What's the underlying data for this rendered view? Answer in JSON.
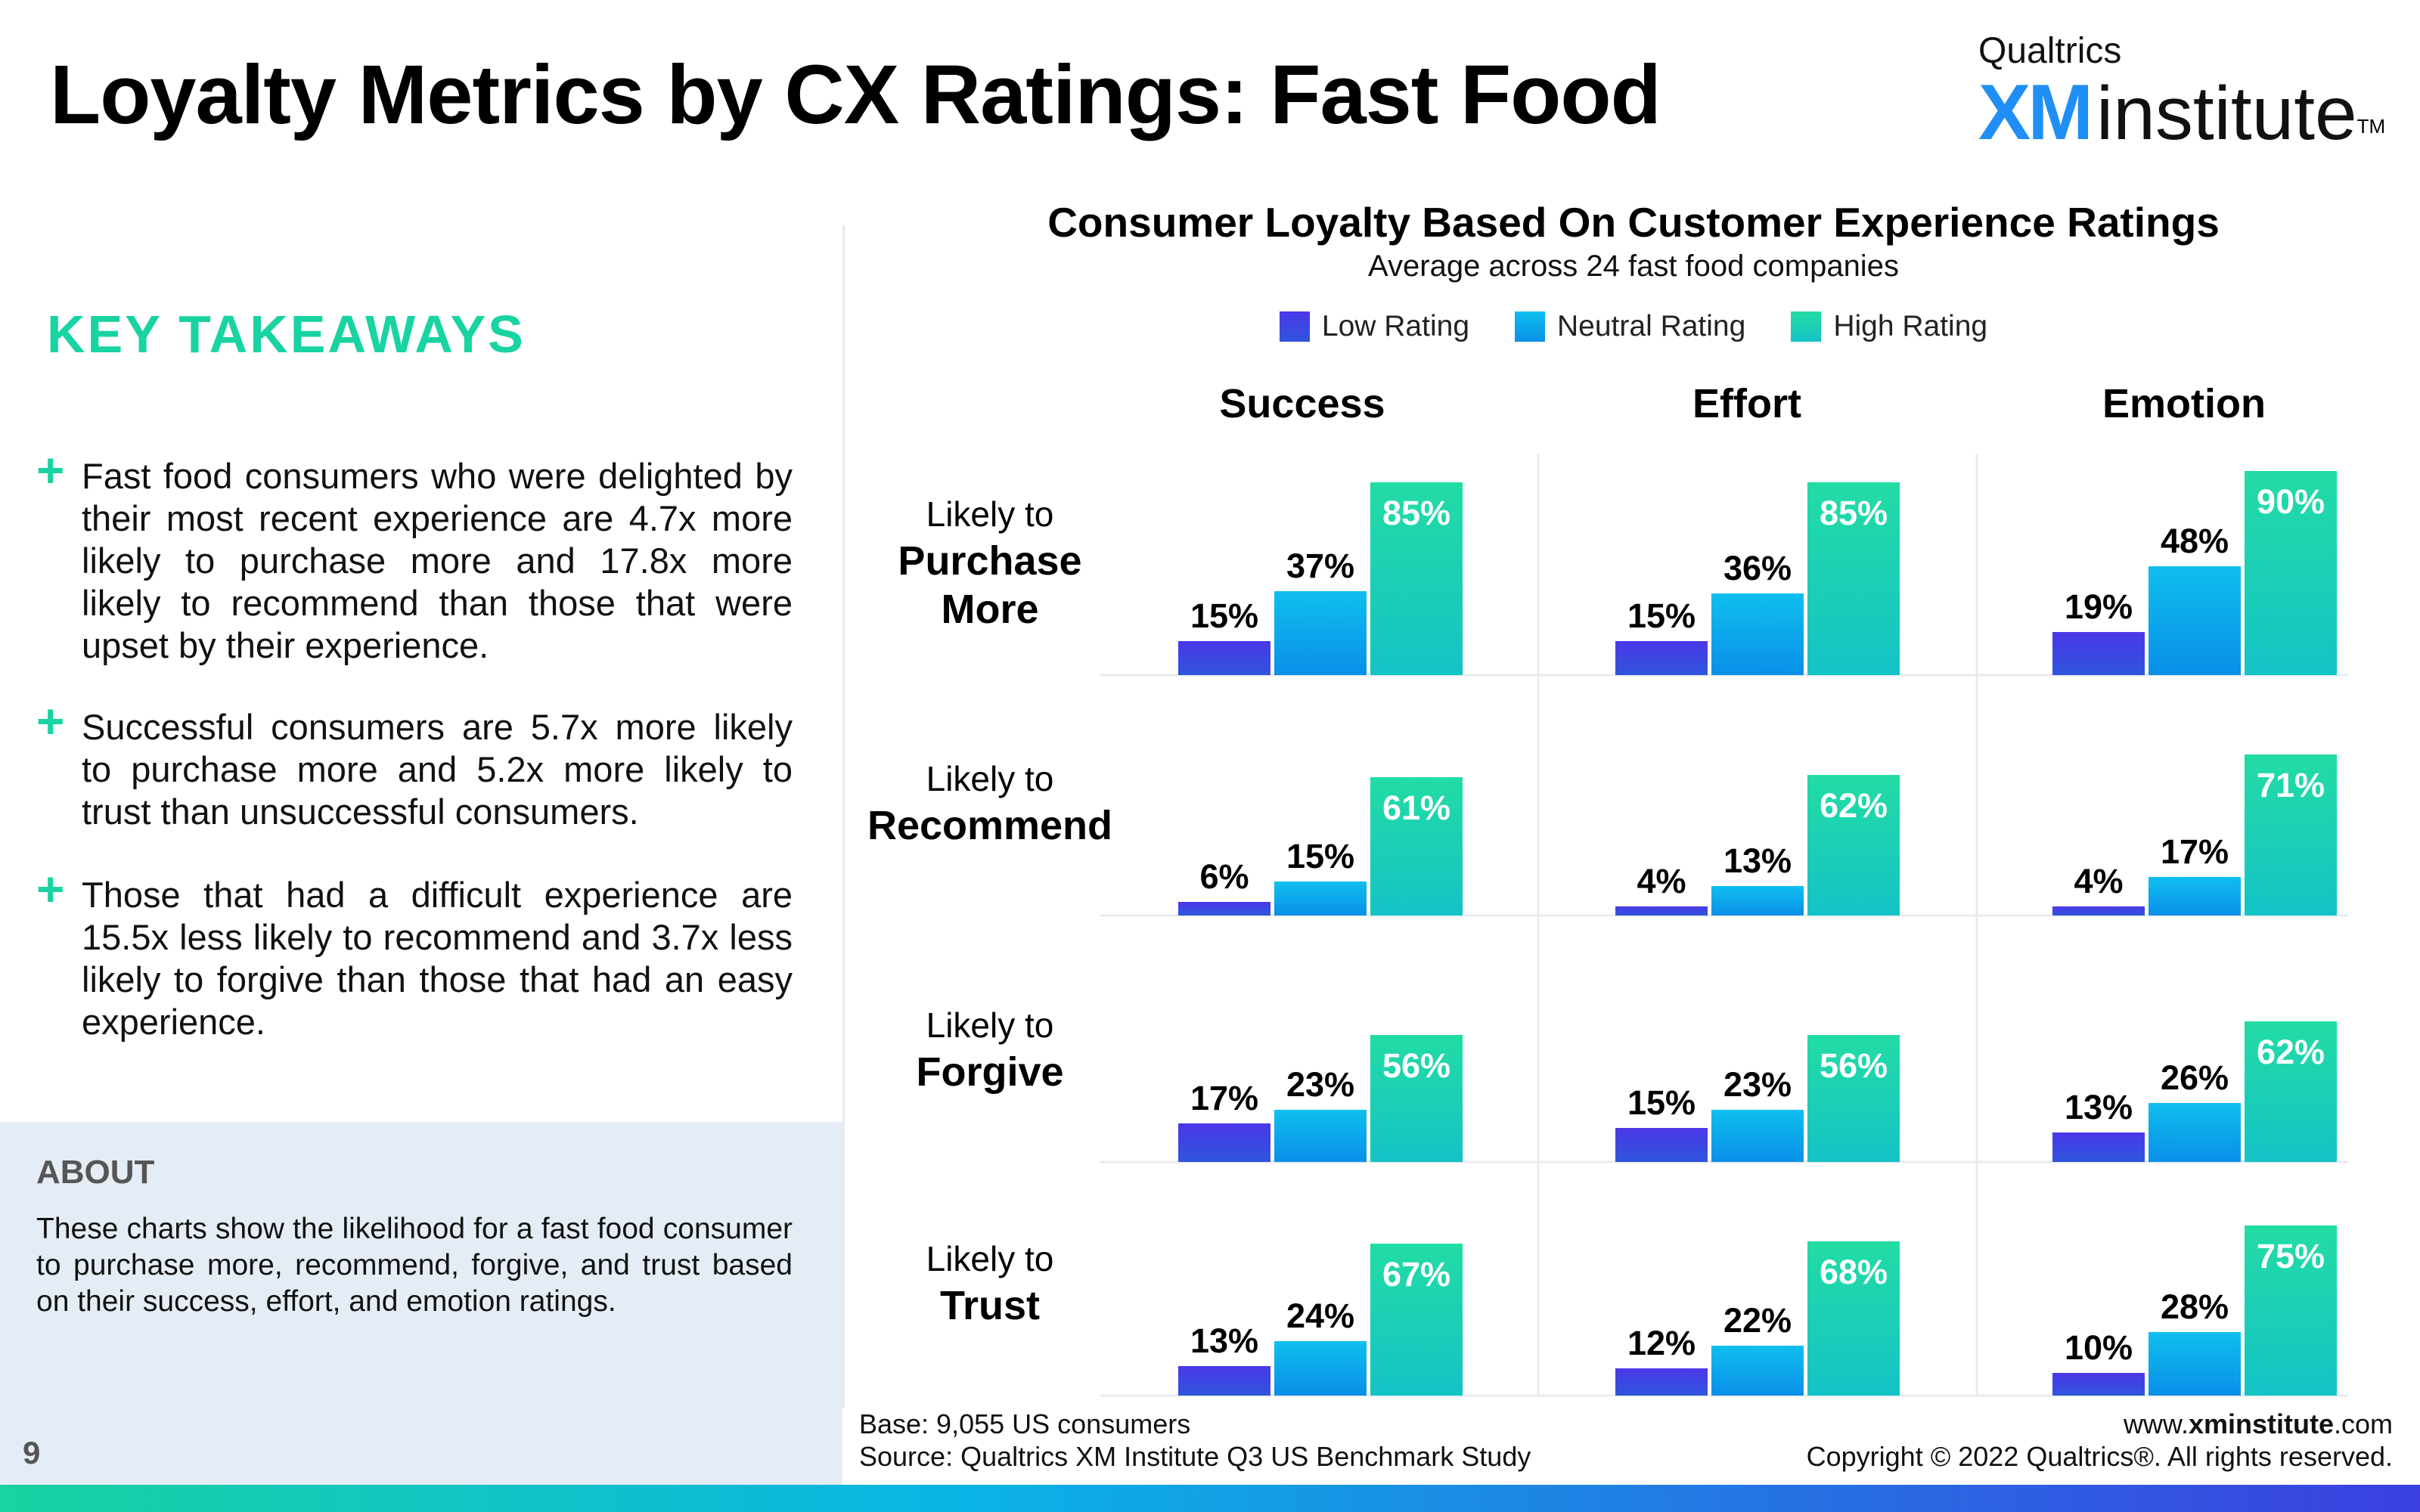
{
  "header": {
    "title": "Loyalty Metrics by CX Ratings: Fast Food",
    "logo_top": "Qualtrics",
    "logo_xm": "XM",
    "logo_institute": "institute",
    "logo_tm": "TM"
  },
  "takeaways": {
    "heading": "KEY TAKEAWAYS",
    "items": [
      "Fast food consumers who were delighted by their most recent experience are 4.7x more likely to purchase more and 17.8x more likely to recommend than those that were upset by their experience.",
      "Successful consumers are 5.7x more likely to purchase more and 5.2x more likely to trust than unsuccessful consumers.",
      "Those that had a difficult experience are 15.5x less likely to recommend and 3.7x less likely to forgive than those that had an easy experience."
    ]
  },
  "about": {
    "heading": "ABOUT",
    "text": "These charts show the likelihood for a fast food consumer to purchase more, recommend, forgive, and trust based on their success, effort, and emotion ratings."
  },
  "page_number": "9",
  "footer": {
    "base": "Base: 9,055 US consumers",
    "source": "Source: Qualtrics XM Institute Q3 US Benchmark Study",
    "url_prefix": "www.",
    "url_bold": "xminstitute",
    "url_suffix": ".com",
    "copyright": "Copyright © 2022 Qualtrics®. All rights reserved."
  },
  "colors": {
    "low": "#3b3fe0",
    "neutral": "#0ab4e6",
    "high": "#19d3a2",
    "accent": "#19d3a2"
  },
  "chart_data": {
    "type": "bar",
    "title": "Consumer Loyalty Based On Customer Experience Ratings",
    "subtitle": "Average across 24 fast food companies",
    "legend": [
      "Low Rating",
      "Neutral Rating",
      "High Rating"
    ],
    "legend_position": "top",
    "columns": [
      "Success",
      "Effort",
      "Emotion"
    ],
    "rows": [
      {
        "label_top": "Likely to",
        "label_main": [
          "Purchase",
          "More"
        ]
      },
      {
        "label_top": "Likely to",
        "label_main": [
          "Recommend"
        ]
      },
      {
        "label_top": "Likely to",
        "label_main": [
          "Forgive"
        ]
      },
      {
        "label_top": "Likely to",
        "label_main": [
          "Trust"
        ]
      }
    ],
    "values": [
      [
        [
          15,
          37,
          85
        ],
        [
          15,
          36,
          85
        ],
        [
          19,
          48,
          90
        ]
      ],
      [
        [
          6,
          15,
          61
        ],
        [
          4,
          13,
          62
        ],
        [
          4,
          17,
          71
        ]
      ],
      [
        [
          17,
          23,
          56
        ],
        [
          15,
          23,
          56
        ],
        [
          13,
          26,
          62
        ]
      ],
      [
        [
          13,
          24,
          67
        ],
        [
          12,
          22,
          68
        ],
        [
          10,
          28,
          75
        ]
      ]
    ],
    "unit": "%"
  }
}
